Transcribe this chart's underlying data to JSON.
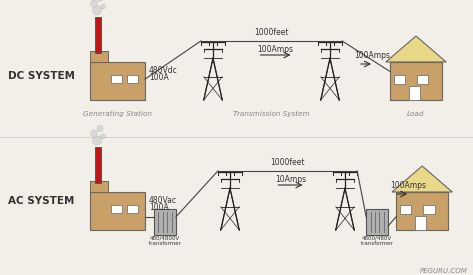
{
  "bg_color": "#f2efe9",
  "title_dc": "DC SYSTEM",
  "title_ac": "AC SYSTEM",
  "dc_voltage": "480Vdc",
  "dc_current": "100A",
  "ac_voltage": "480Vac",
  "ac_current": "100A",
  "dc_transmission_current": "100Amps",
  "dc_load_current": "100Amps",
  "ac_transmission_current": "10Amps",
  "ac_load_current": "100Amps",
  "distance": "1000feet",
  "ac_transformer1": "480/4800V\ntransformer",
  "ac_transformer2": "4800/480V\ntransformer",
  "label_gen": "Generating Station",
  "label_trans": "Transmission System",
  "label_load": "Load",
  "watermark": "PEGURU.COM",
  "building_color": "#c8a068",
  "roof_color": "#e8d888",
  "chimney_color": "#cc1111",
  "window_color": "#ffffff",
  "tower_color": "#222222",
  "wire_color": "#444444",
  "transformer_color": "#b0b0b0",
  "smoke_color": "#d8d8d8",
  "text_color": "#333333",
  "label_color": "#888888",
  "divider_color": "#cccccc"
}
